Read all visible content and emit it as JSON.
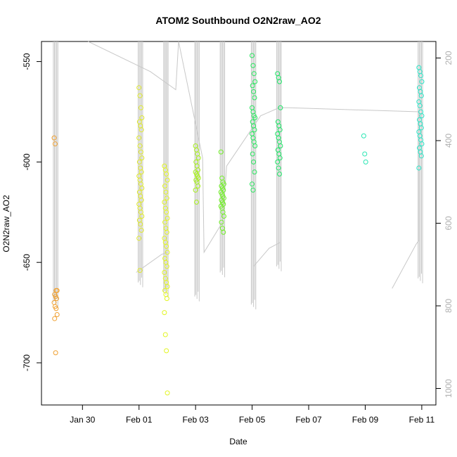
{
  "chart_data": {
    "type": "scatter",
    "title": "ATOM2 Southbound O2N2raw_AO2",
    "xlabel": "Date",
    "ylabel": "O2N2raw_AO2",
    "x_ticks": [
      "Jan 30",
      "Feb 01",
      "Feb 03",
      "Feb 05",
      "Feb 07",
      "Feb 09",
      "Feb 11"
    ],
    "x_tick_days": [
      30,
      32,
      34,
      36,
      38,
      40,
      42
    ],
    "xlim_days": [
      28.55,
      42.5
    ],
    "ylim": [
      -721,
      -540
    ],
    "y_ticks": [
      -550,
      -600,
      -650,
      -700
    ],
    "y2_ticks": [
      200,
      400,
      600,
      800,
      1000
    ],
    "y2lim": [
      1040,
      160
    ],
    "grid": false,
    "point_series": [
      {
        "x": 29.05,
        "color": "#f0a030",
        "values": [
          -588,
          -591,
          -664,
          -664,
          -666,
          -667,
          -668,
          -670,
          -672,
          -673,
          -676,
          -678,
          -695
        ]
      },
      {
        "x": 32.05,
        "color": "#e0ea2c",
        "values": [
          -563,
          -567,
          -573,
          -578,
          -580,
          -582,
          -584,
          -588,
          -592,
          -595,
          -598,
          -600,
          -603,
          -605,
          -607,
          -609,
          -611,
          -613,
          -615,
          -617,
          -619,
          -621,
          -623,
          -625,
          -627,
          -629,
          -631,
          -634,
          -638,
          -654
        ]
      },
      {
        "x": 32.95,
        "color": "#e2f523",
        "values": [
          -602,
          -604,
          -606,
          -609,
          -612,
          -615,
          -618,
          -620,
          -623,
          -625,
          -628,
          -630,
          -633,
          -635,
          -638,
          -640,
          -642,
          -645,
          -648,
          -650,
          -652,
          -655,
          -658,
          -660,
          -662,
          -664,
          -666,
          -668,
          -675,
          -686,
          -694,
          -715
        ]
      },
      {
        "x": 34.05,
        "color": "#a8f01e",
        "values": [
          -592,
          -594,
          -596,
          -598,
          -600,
          -602,
          -604,
          -605,
          -606,
          -607,
          -608,
          -609,
          -610,
          -612,
          -614,
          -620
        ]
      },
      {
        "x": 34.95,
        "color": "#72f028",
        "values": [
          -595,
          -608,
          -610,
          -611,
          -612,
          -613,
          -614,
          -615,
          -616,
          -617,
          -618,
          -619,
          -620,
          -621,
          -622,
          -623,
          -625,
          -627,
          -630,
          -633,
          -635
        ]
      },
      {
        "x": 36.05,
        "color": "#2ae860",
        "values": [
          -547,
          -552,
          -556,
          -560,
          -562,
          -565,
          -568,
          -573,
          -575,
          -577,
          -578,
          -580,
          -582,
          -584,
          -586,
          -588,
          -590,
          -592,
          -596,
          -600,
          -605,
          -611,
          -614
        ]
      },
      {
        "x": 36.95,
        "color": "#1ce666",
        "values": [
          -556,
          -558,
          -560,
          -573,
          -580,
          -582,
          -584,
          -586,
          -588,
          -590,
          -592,
          -594,
          -596,
          -598,
          -600,
          -603,
          -606
        ]
      },
      {
        "x": 40.0,
        "color": "#2ae6b4",
        "values": [
          -587,
          -596,
          -600
        ]
      },
      {
        "x": 41.95,
        "color": "#2ae6c8",
        "values": [
          -553,
          -555,
          -557,
          -560,
          -563,
          -565,
          -567,
          -570,
          -572,
          -575,
          -577,
          -579,
          -581,
          -583,
          -585,
          -587,
          -589,
          -591,
          -593,
          -595,
          -597,
          -603
        ]
      }
    ],
    "profile_series": {
      "color": "#c8c8c8",
      "vertical_bundles": [
        {
          "x": 29.05,
          "top": -540,
          "bottom": -670
        },
        {
          "x": 32.05,
          "top": -540,
          "bottom": -660
        },
        {
          "x": 32.95,
          "top": -540,
          "bottom": -665
        },
        {
          "x": 34.05,
          "top": -540,
          "bottom": -667
        },
        {
          "x": 34.95,
          "top": -540,
          "bottom": -655
        },
        {
          "x": 36.05,
          "top": -540,
          "bottom": -671
        },
        {
          "x": 36.95,
          "top": -540,
          "bottom": -652
        },
        {
          "x": 41.95,
          "top": -540,
          "bottom": -658
        }
      ],
      "track": [
        [
          30.2,
          -540
        ],
        [
          32.4,
          -555
        ],
        [
          33.3,
          -564
        ],
        [
          33.4,
          -540
        ],
        [
          34.25,
          -598
        ],
        [
          34.3,
          -645
        ],
        [
          34.95,
          -630
        ],
        [
          35.1,
          -602
        ],
        [
          36.3,
          -577
        ],
        [
          36.95,
          -573
        ],
        [
          37.3,
          -573
        ],
        [
          41.9,
          -575
        ],
        [
          41.9,
          -639
        ],
        [
          41.8,
          -641
        ],
        [
          40.95,
          -663
        ]
      ],
      "track2": [
        [
          31.9,
          -655
        ],
        [
          32.8,
          -646
        ],
        [
          33.0,
          -645
        ]
      ],
      "track3": [
        [
          36.05,
          -652
        ],
        [
          36.6,
          -643
        ],
        [
          37.0,
          -640
        ]
      ]
    }
  }
}
